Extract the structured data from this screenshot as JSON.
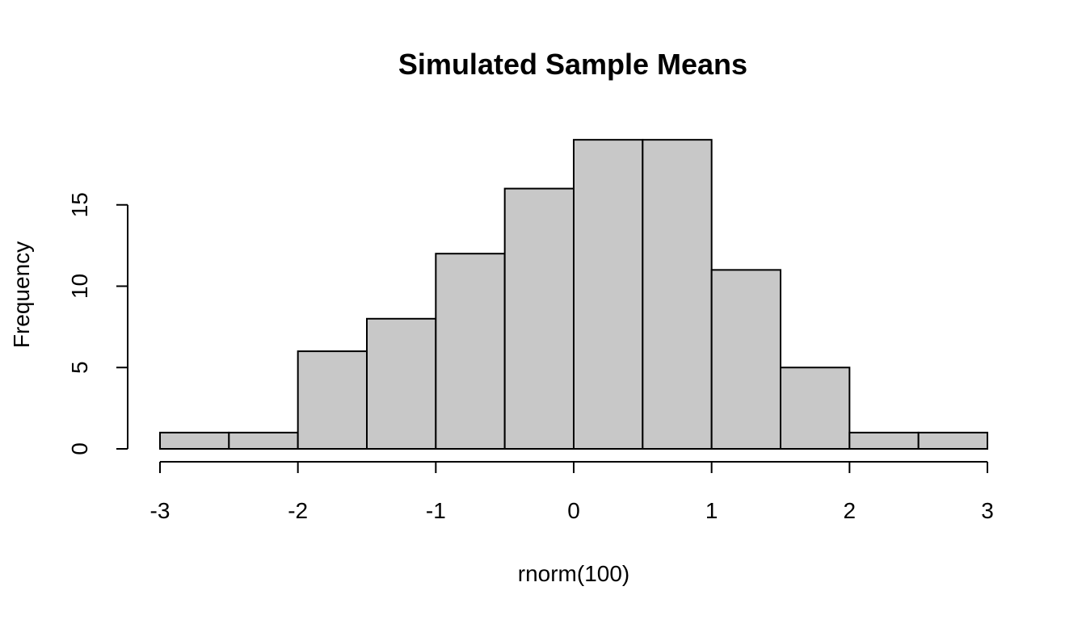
{
  "chart_data": {
    "type": "bar",
    "title": "Simulated Sample Means",
    "xlabel": "rnorm(100)",
    "ylabel": "Frequency",
    "bins": [
      {
        "x0": -3.0,
        "x1": -2.5,
        "count": 1
      },
      {
        "x0": -2.5,
        "x1": -2.0,
        "count": 1
      },
      {
        "x0": -2.0,
        "x1": -1.5,
        "count": 6
      },
      {
        "x0": -1.5,
        "x1": -1.0,
        "count": 8
      },
      {
        "x0": -1.0,
        "x1": -0.5,
        "count": 12
      },
      {
        "x0": -0.5,
        "x1": 0.0,
        "count": 16
      },
      {
        "x0": 0.0,
        "x1": 0.5,
        "count": 19
      },
      {
        "x0": 0.5,
        "x1": 1.0,
        "count": 19
      },
      {
        "x0": 1.0,
        "x1": 1.5,
        "count": 11
      },
      {
        "x0": 1.5,
        "x1": 2.0,
        "count": 5
      },
      {
        "x0": 2.0,
        "x1": 2.5,
        "count": 1
      },
      {
        "x0": 2.5,
        "x1": 3.0,
        "count": 1
      }
    ],
    "xticks": [
      -3,
      -2,
      -1,
      0,
      1,
      2,
      3
    ],
    "xtick_labels": [
      "-3",
      "-2",
      "-1",
      "0",
      "1",
      "2",
      "3"
    ],
    "yticks": [
      0,
      5,
      10,
      15
    ],
    "ytick_labels": [
      "0",
      "5",
      "10",
      "15"
    ],
    "xlim": [
      -3,
      3
    ],
    "ylim": [
      0,
      20
    ],
    "bar_color": "#c8c8c8",
    "edge_color": "#000000",
    "grid": false,
    "legend": "none"
  }
}
